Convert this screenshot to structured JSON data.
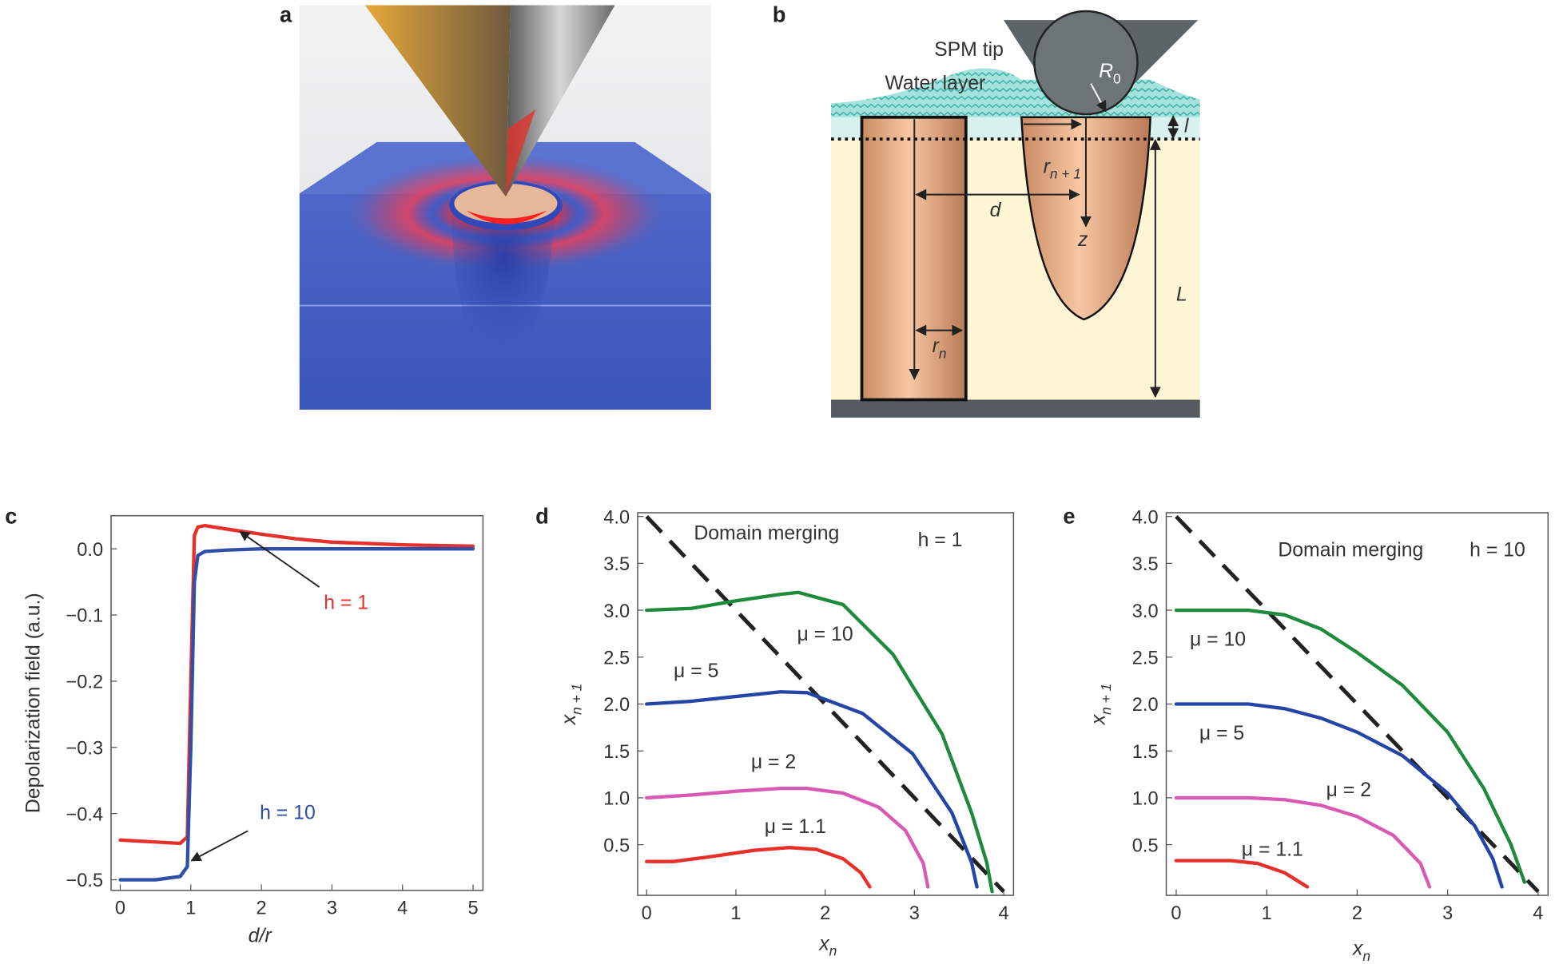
{
  "panel_labels": [
    "a",
    "b",
    "c",
    "d",
    "e"
  ],
  "diagram": {
    "spm_tip": "SPM tip",
    "water_layer": "Water layer",
    "tip_radius": {
      "symbol": "R",
      "subscript": "0"
    },
    "layer_thickness": "l",
    "next_radius": {
      "symbol": "r",
      "subscript": "n + 1"
    },
    "distance": "d",
    "depth": "z",
    "film_thickness": "L",
    "radius": {
      "symbol": "r",
      "subscript": "n"
    }
  },
  "chart_data": [
    {
      "type": "line",
      "xlabel": "d/r",
      "ylabel": "Depolarization field (a.u.)",
      "xlim": [
        -0.13,
        5.14
      ],
      "ylim": [
        -0.516,
        0.05
      ],
      "xticks": [
        0,
        1,
        2,
        3,
        4,
        5
      ],
      "yticks": [
        {
          "value": 0,
          "label": "0.0"
        },
        {
          "value": -0.1,
          "label": "−0.1"
        },
        {
          "value": -0.2,
          "label": "−0.2"
        },
        {
          "value": -0.3,
          "label": "−0.3"
        },
        {
          "value": -0.4,
          "label": "−0.4"
        },
        {
          "value": -0.5,
          "label": "−0.5"
        }
      ],
      "series": [
        {
          "name": "h = 1",
          "color": "#e8302a",
          "x": [
            0,
            0.5,
            0.85,
            0.95,
            1.0,
            1.05,
            1.1,
            1.2,
            1.5,
            2,
            2.5,
            3,
            3.5,
            4,
            4.5,
            5
          ],
          "values": [
            -0.44,
            -0.443,
            -0.445,
            -0.435,
            -0.2,
            0.02,
            0.033,
            0.035,
            0.03,
            0.022,
            0.015,
            0.01,
            0.008,
            0.006,
            0.005,
            0.004
          ]
        },
        {
          "name": "h = 10",
          "color": "#2f4fa8",
          "x": [
            0,
            0.5,
            0.85,
            0.95,
            1.0,
            1.05,
            1.1,
            1.2,
            1.5,
            2,
            3,
            4,
            5
          ],
          "values": [
            -0.5,
            -0.5,
            -0.495,
            -0.48,
            -0.3,
            -0.05,
            -0.01,
            -0.004,
            -0.002,
            0,
            0,
            0,
            0
          ]
        }
      ]
    },
    {
      "type": "line",
      "title": "h = 1",
      "xlabel": {
        "symbol": "x",
        "subscript": "n"
      },
      "ylabel": {
        "symbol": "x",
        "subscript": "n + 1"
      },
      "xlim": [
        -0.1,
        4.11
      ],
      "ylim": [
        -0.04,
        4.04
      ],
      "xticks": [
        0,
        1,
        2,
        3,
        4
      ],
      "yticks": [
        0.5,
        {
          "value": 1,
          "label": "1.0"
        },
        1.5,
        {
          "value": 2,
          "label": "2.0"
        },
        2.5,
        {
          "value": 3,
          "label": "3.0"
        },
        3.5,
        {
          "value": 4,
          "label": "4.0"
        }
      ],
      "series": [
        {
          "name": "Domain merging",
          "color": "#222222",
          "line_style": "dashed",
          "x": [
            0,
            4
          ],
          "values": [
            4,
            0
          ]
        },
        {
          "name": "μ = 10",
          "color": "#1e8a3c",
          "x": [
            0,
            0.5,
            1,
            1.5,
            1.7,
            2.2,
            2.76,
            3.31,
            3.64,
            3.81,
            3.87
          ],
          "values": [
            3.0,
            3.02,
            3.1,
            3.17,
            3.19,
            3.06,
            2.53,
            1.68,
            0.84,
            0.31,
            0.0
          ]
        },
        {
          "name": "μ = 5",
          "color": "#2346a6",
          "x": [
            0,
            0.5,
            1,
            1.5,
            1.8,
            2.42,
            2.98,
            3.42,
            3.64,
            3.7
          ],
          "values": [
            2.0,
            2.03,
            2.08,
            2.13,
            2.12,
            1.9,
            1.47,
            0.84,
            0.31,
            0.05
          ]
        },
        {
          "name": "μ = 2",
          "color": "#d85ab4",
          "x": [
            0,
            0.5,
            1,
            1.5,
            1.8,
            2.2,
            2.6,
            2.9,
            3.1,
            3.15
          ],
          "values": [
            1.0,
            1.03,
            1.07,
            1.1,
            1.1,
            1.05,
            0.9,
            0.65,
            0.3,
            0.05
          ]
        },
        {
          "name": "μ = 1.1",
          "color": "#e8302a",
          "x": [
            0,
            0.3,
            0.7,
            1.2,
            1.6,
            1.9,
            2.2,
            2.4,
            2.5
          ],
          "values": [
            0.32,
            0.32,
            0.37,
            0.44,
            0.47,
            0.45,
            0.35,
            0.2,
            0.05
          ]
        }
      ]
    },
    {
      "type": "line",
      "title": "h = 10",
      "xlabel": {
        "symbol": "x",
        "subscript": "n"
      },
      "ylabel": {
        "symbol": "x",
        "subscript": "n + 1"
      },
      "xlim": [
        -0.11,
        4.11
      ],
      "ylim": [
        -0.04,
        4.04
      ],
      "xticks": [
        0,
        1,
        2,
        3,
        4
      ],
      "yticks": [
        0.5,
        {
          "value": 1,
          "label": "1.0"
        },
        1.5,
        {
          "value": 2,
          "label": "2.0"
        },
        2.5,
        {
          "value": 3,
          "label": "3.0"
        },
        3.5,
        {
          "value": 4,
          "label": "4.0"
        }
      ],
      "series": [
        {
          "name": "Domain merging",
          "color": "#222222",
          "line_style": "dashed",
          "x": [
            0,
            4
          ],
          "values": [
            4,
            0
          ]
        },
        {
          "name": "μ = 10",
          "color": "#1e8a3c",
          "x": [
            0,
            0.8,
            1.2,
            1.6,
            2,
            2.5,
            3,
            3.4,
            3.7,
            3.85
          ],
          "values": [
            3.0,
            3.0,
            2.95,
            2.8,
            2.55,
            2.2,
            1.7,
            1.1,
            0.5,
            0.1
          ]
        },
        {
          "name": "μ = 5",
          "color": "#2346a6",
          "x": [
            0,
            0.8,
            1.2,
            1.6,
            2,
            2.5,
            3,
            3.3,
            3.5,
            3.6
          ],
          "values": [
            2.0,
            2.0,
            1.95,
            1.85,
            1.7,
            1.45,
            1.05,
            0.7,
            0.35,
            0.05
          ]
        },
        {
          "name": "μ = 2",
          "color": "#d85ab4",
          "x": [
            0,
            0.8,
            1.2,
            1.6,
            2,
            2.4,
            2.7,
            2.8
          ],
          "values": [
            1.0,
            1.0,
            0.98,
            0.92,
            0.8,
            0.6,
            0.3,
            0.05
          ]
        },
        {
          "name": "μ = 1.1",
          "color": "#e8302a",
          "x": [
            0,
            0.6,
            0.9,
            1.2,
            1.45
          ],
          "values": [
            0.33,
            0.33,
            0.3,
            0.2,
            0.05
          ]
        }
      ]
    }
  ]
}
